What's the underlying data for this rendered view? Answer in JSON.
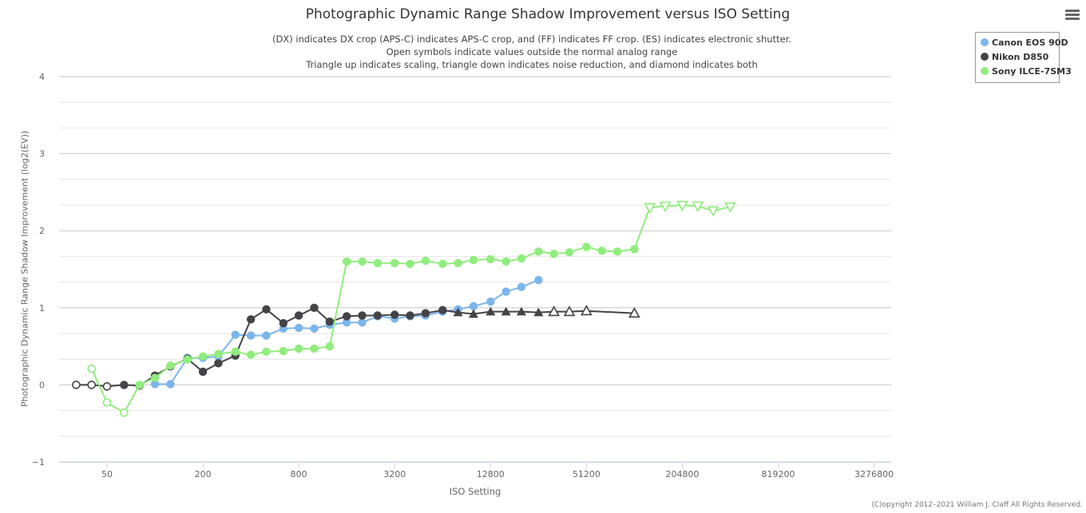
{
  "chart_data": {
    "type": "line",
    "title": "Photographic Dynamic Range Shadow Improvement versus ISO Setting",
    "subtitle": [
      "(DX) indicates DX crop (APS-C) indicates APS-C crop, and (FF) indicates FF crop. (ES) indicates electronic shutter.",
      "Open symbols indicate values outside the normal analog range",
      "Triangle up indicates scaling, triangle down indicates noise reduction, and diamond indicates both"
    ],
    "xlabel": "ISO Setting",
    "ylabel": "Photographic Dynamic Range Shadow Improvement (log2(EV))",
    "xscale": "log2",
    "xlim": [
      25,
      4194304
    ],
    "ylim": [
      -1,
      4
    ],
    "yticks": [
      "4",
      "3",
      "2",
      "1",
      "0",
      "−1"
    ],
    "ytick_values": [
      4,
      3,
      2,
      1,
      0,
      -1
    ],
    "xticks": [
      "50",
      "200",
      "800",
      "3200",
      "12800",
      "51200",
      "204800",
      "819200",
      "3276800"
    ],
    "xtick_values": [
      50,
      200,
      800,
      3200,
      12800,
      51200,
      204800,
      819200,
      3276800
    ],
    "credit": "(C)opyright 2012–2021 William J. Claff All Rights Reserved.",
    "series": [
      {
        "name": "Canon EOS 90D",
        "color": "#7cb5ec",
        "points": [
          {
            "x": 100,
            "y": 0.01,
            "m": "circle"
          },
          {
            "x": 125,
            "y": 0.01,
            "m": "circle"
          },
          {
            "x": 160,
            "y": 0.35,
            "m": "circle"
          },
          {
            "x": 200,
            "y": 0.35,
            "m": "circle"
          },
          {
            "x": 250,
            "y": 0.37,
            "m": "circle"
          },
          {
            "x": 320,
            "y": 0.65,
            "m": "circle"
          },
          {
            "x": 400,
            "y": 0.64,
            "m": "circle"
          },
          {
            "x": 500,
            "y": 0.64,
            "m": "circle"
          },
          {
            "x": 640,
            "y": 0.73,
            "m": "circle"
          },
          {
            "x": 800,
            "y": 0.74,
            "m": "circle"
          },
          {
            "x": 1000,
            "y": 0.73,
            "m": "circle"
          },
          {
            "x": 1250,
            "y": 0.78,
            "m": "circle"
          },
          {
            "x": 1600,
            "y": 0.81,
            "m": "circle"
          },
          {
            "x": 2000,
            "y": 0.81,
            "m": "circle"
          },
          {
            "x": 2500,
            "y": 0.89,
            "m": "circle"
          },
          {
            "x": 3200,
            "y": 0.86,
            "m": "circle"
          },
          {
            "x": 4000,
            "y": 0.89,
            "m": "circle"
          },
          {
            "x": 5000,
            "y": 0.9,
            "m": "circle"
          },
          {
            "x": 6400,
            "y": 0.95,
            "m": "circle"
          },
          {
            "x": 8000,
            "y": 0.98,
            "m": "circle"
          },
          {
            "x": 10000,
            "y": 1.02,
            "m": "circle"
          },
          {
            "x": 12800,
            "y": 1.08,
            "m": "circle"
          },
          {
            "x": 16000,
            "y": 1.21,
            "m": "circle"
          },
          {
            "x": 20000,
            "y": 1.27,
            "m": "circle"
          },
          {
            "x": 25600,
            "y": 1.36,
            "m": "circle"
          }
        ]
      },
      {
        "name": "Nikon D850",
        "color": "#434348",
        "points": [
          {
            "x": 32,
            "y": 0.0,
            "m": "circle-open"
          },
          {
            "x": 40,
            "y": 0.0,
            "m": "circle-open"
          },
          {
            "x": 50,
            "y": -0.02,
            "m": "circle-open"
          },
          {
            "x": 64,
            "y": 0.0,
            "m": "circle"
          },
          {
            "x": 80,
            "y": -0.01,
            "m": "circle"
          },
          {
            "x": 100,
            "y": 0.12,
            "m": "circle"
          },
          {
            "x": 125,
            "y": 0.24,
            "m": "circle"
          },
          {
            "x": 160,
            "y": 0.34,
            "m": "circle"
          },
          {
            "x": 200,
            "y": 0.17,
            "m": "circle"
          },
          {
            "x": 250,
            "y": 0.28,
            "m": "circle"
          },
          {
            "x": 320,
            "y": 0.38,
            "m": "circle"
          },
          {
            "x": 400,
            "y": 0.85,
            "m": "circle"
          },
          {
            "x": 500,
            "y": 0.98,
            "m": "circle"
          },
          {
            "x": 640,
            "y": 0.8,
            "m": "circle"
          },
          {
            "x": 800,
            "y": 0.9,
            "m": "circle"
          },
          {
            "x": 1000,
            "y": 1.0,
            "m": "circle"
          },
          {
            "x": 1250,
            "y": 0.82,
            "m": "circle"
          },
          {
            "x": 1600,
            "y": 0.89,
            "m": "circle"
          },
          {
            "x": 2000,
            "y": 0.9,
            "m": "circle"
          },
          {
            "x": 2500,
            "y": 0.9,
            "m": "circle"
          },
          {
            "x": 3200,
            "y": 0.91,
            "m": "circle"
          },
          {
            "x": 4000,
            "y": 0.9,
            "m": "circle"
          },
          {
            "x": 5000,
            "y": 0.93,
            "m": "circle"
          },
          {
            "x": 6400,
            "y": 0.97,
            "m": "circle"
          },
          {
            "x": 8000,
            "y": 0.94,
            "m": "triangle-up"
          },
          {
            "x": 10000,
            "y": 0.92,
            "m": "triangle-up"
          },
          {
            "x": 12800,
            "y": 0.95,
            "m": "triangle-up"
          },
          {
            "x": 16000,
            "y": 0.95,
            "m": "triangle-up"
          },
          {
            "x": 20000,
            "y": 0.95,
            "m": "triangle-up"
          },
          {
            "x": 25600,
            "y": 0.94,
            "m": "triangle-up"
          },
          {
            "x": 32000,
            "y": 0.95,
            "m": "triangle-up-open"
          },
          {
            "x": 40000,
            "y": 0.95,
            "m": "triangle-up-open"
          },
          {
            "x": 51200,
            "y": 0.96,
            "m": "triangle-up-open"
          },
          {
            "x": 102400,
            "y": 0.93,
            "m": "triangle-up-open"
          }
        ]
      },
      {
        "name": "Sony ILCE-7SM3",
        "color": "#90ed7d",
        "points": [
          {
            "x": 40,
            "y": 0.21,
            "m": "circle-open"
          },
          {
            "x": 50,
            "y": -0.23,
            "m": "circle-open"
          },
          {
            "x": 64,
            "y": -0.36,
            "m": "circle-open"
          },
          {
            "x": 80,
            "y": 0.0,
            "m": "circle"
          },
          {
            "x": 100,
            "y": 0.09,
            "m": "circle"
          },
          {
            "x": 125,
            "y": 0.25,
            "m": "circle"
          },
          {
            "x": 160,
            "y": 0.33,
            "m": "circle"
          },
          {
            "x": 200,
            "y": 0.37,
            "m": "circle"
          },
          {
            "x": 250,
            "y": 0.4,
            "m": "circle"
          },
          {
            "x": 320,
            "y": 0.43,
            "m": "circle"
          },
          {
            "x": 400,
            "y": 0.39,
            "m": "circle"
          },
          {
            "x": 500,
            "y": 0.43,
            "m": "circle"
          },
          {
            "x": 640,
            "y": 0.44,
            "m": "circle"
          },
          {
            "x": 800,
            "y": 0.47,
            "m": "circle"
          },
          {
            "x": 1000,
            "y": 0.47,
            "m": "circle"
          },
          {
            "x": 1250,
            "y": 0.5,
            "m": "circle"
          },
          {
            "x": 1600,
            "y": 1.6,
            "m": "circle"
          },
          {
            "x": 2000,
            "y": 1.6,
            "m": "circle"
          },
          {
            "x": 2500,
            "y": 1.58,
            "m": "circle"
          },
          {
            "x": 3200,
            "y": 1.58,
            "m": "circle"
          },
          {
            "x": 4000,
            "y": 1.57,
            "m": "circle"
          },
          {
            "x": 5000,
            "y": 1.61,
            "m": "circle"
          },
          {
            "x": 6400,
            "y": 1.57,
            "m": "circle"
          },
          {
            "x": 8000,
            "y": 1.58,
            "m": "circle"
          },
          {
            "x": 10000,
            "y": 1.62,
            "m": "circle"
          },
          {
            "x": 12800,
            "y": 1.63,
            "m": "circle"
          },
          {
            "x": 16000,
            "y": 1.6,
            "m": "circle"
          },
          {
            "x": 20000,
            "y": 1.64,
            "m": "circle"
          },
          {
            "x": 25600,
            "y": 1.73,
            "m": "circle"
          },
          {
            "x": 32000,
            "y": 1.7,
            "m": "circle"
          },
          {
            "x": 40000,
            "y": 1.72,
            "m": "circle"
          },
          {
            "x": 51200,
            "y": 1.79,
            "m": "circle"
          },
          {
            "x": 64000,
            "y": 1.74,
            "m": "circle"
          },
          {
            "x": 80000,
            "y": 1.73,
            "m": "circle"
          },
          {
            "x": 102400,
            "y": 1.76,
            "m": "circle"
          },
          {
            "x": 128000,
            "y": 2.3,
            "m": "triangle-down-open"
          },
          {
            "x": 160000,
            "y": 2.32,
            "m": "triangle-down-open"
          },
          {
            "x": 204800,
            "y": 2.33,
            "m": "triangle-down-open"
          },
          {
            "x": 256000,
            "y": 2.32,
            "m": "triangle-down-open"
          },
          {
            "x": 320000,
            "y": 2.26,
            "m": "triangle-down-open"
          },
          {
            "x": 409600,
            "y": 2.31,
            "m": "triangle-down-open"
          }
        ]
      }
    ]
  }
}
